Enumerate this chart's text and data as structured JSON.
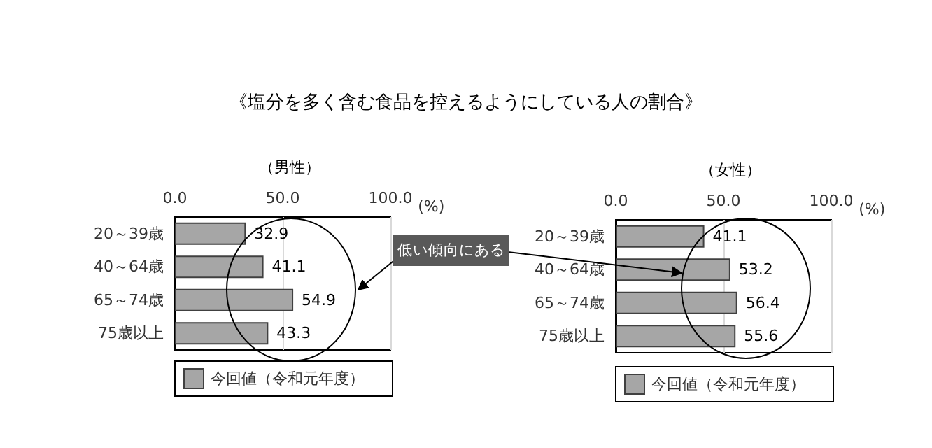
{
  "chart_data": [
    {
      "type": "bar",
      "orientation": "horizontal",
      "title": "《塩分を多く含む食品を控えるようにしている人の割合》",
      "subtitle": "（男性）",
      "xlabel": "(%)",
      "categories": [
        "20～39歳",
        "40～64歳",
        "65～74歳",
        "75歳以上"
      ],
      "series": [
        {
          "name": "今回値（令和元年度）",
          "color": "#a6a6a6",
          "values": [
            32.9,
            41.1,
            54.9,
            43.3
          ]
        }
      ],
      "xlim": [
        0,
        100
      ],
      "xticks": [
        {
          "value": 0,
          "label": "0.0"
        },
        {
          "value": 50,
          "label": "50.0"
        },
        {
          "value": 100,
          "label": "100.0"
        }
      ],
      "grid": "x",
      "legend": "bottom",
      "data_labels": true,
      "annotations": [
        "低い傾向にある"
      ]
    },
    {
      "type": "bar",
      "orientation": "horizontal",
      "subtitle": "（女性）",
      "xlabel": "(%)",
      "categories": [
        "20～39歳",
        "40～64歳",
        "65～74歳",
        "75歳以上"
      ],
      "series": [
        {
          "name": "今回値（令和元年度）",
          "color": "#a6a6a6",
          "values": [
            41.1,
            53.2,
            56.4,
            55.6
          ]
        }
      ],
      "xlim": [
        0,
        100
      ],
      "xticks": [
        {
          "value": 0,
          "label": "0.0"
        },
        {
          "value": 50,
          "label": "50.0"
        },
        {
          "value": 100,
          "label": "100.0"
        }
      ],
      "grid": "x",
      "legend": "bottom",
      "data_labels": true
    }
  ]
}
